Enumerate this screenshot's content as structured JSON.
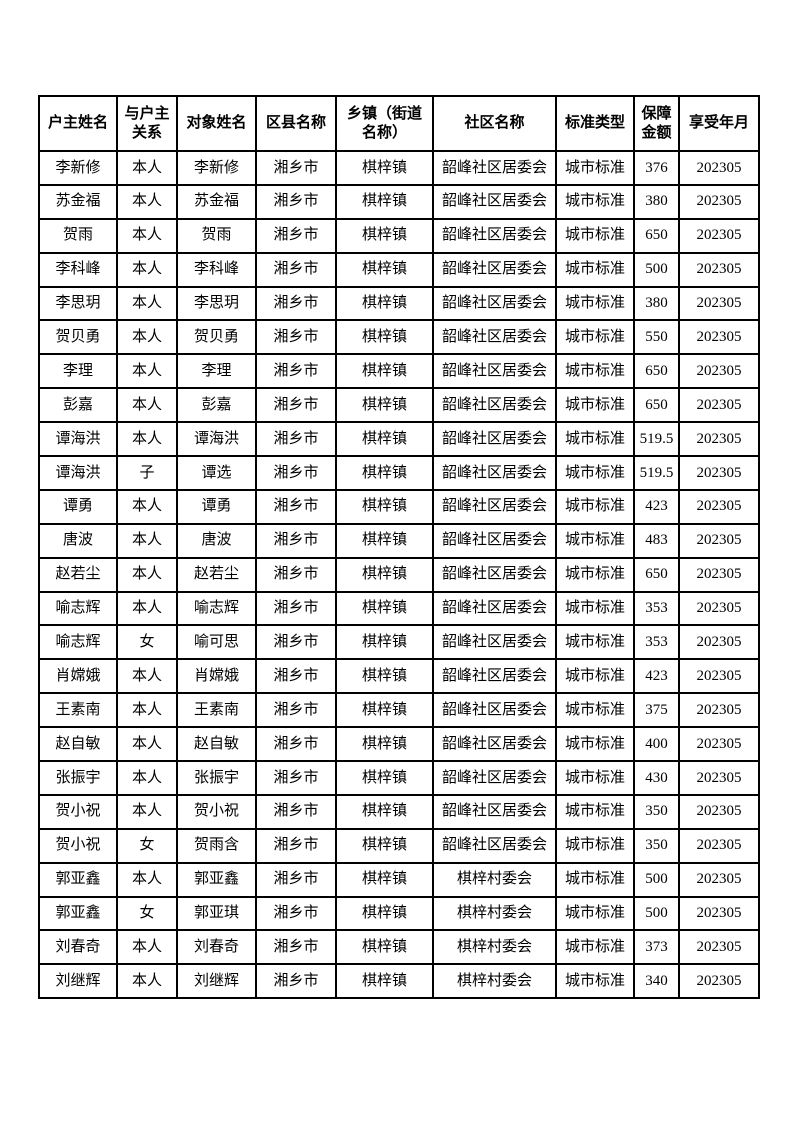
{
  "table": {
    "columns": [
      "户主姓名",
      "与户主\n关系",
      "对象姓名",
      "区县名称",
      "乡镇（街道\n名称）",
      "社区名称",
      "标准类型",
      "保障\n金额",
      "享受年月"
    ],
    "rows": [
      [
        "李新修",
        "本人",
        "李新修",
        "湘乡市",
        "棋梓镇",
        "韶峰社区居委会",
        "城市标准",
        "376",
        "202305"
      ],
      [
        "苏金福",
        "本人",
        "苏金福",
        "湘乡市",
        "棋梓镇",
        "韶峰社区居委会",
        "城市标准",
        "380",
        "202305"
      ],
      [
        "贺雨",
        "本人",
        "贺雨",
        "湘乡市",
        "棋梓镇",
        "韶峰社区居委会",
        "城市标准",
        "650",
        "202305"
      ],
      [
        "李科峰",
        "本人",
        "李科峰",
        "湘乡市",
        "棋梓镇",
        "韶峰社区居委会",
        "城市标准",
        "500",
        "202305"
      ],
      [
        "李思玥",
        "本人",
        "李思玥",
        "湘乡市",
        "棋梓镇",
        "韶峰社区居委会",
        "城市标准",
        "380",
        "202305"
      ],
      [
        "贺贝勇",
        "本人",
        "贺贝勇",
        "湘乡市",
        "棋梓镇",
        "韶峰社区居委会",
        "城市标准",
        "550",
        "202305"
      ],
      [
        "李理",
        "本人",
        "李理",
        "湘乡市",
        "棋梓镇",
        "韶峰社区居委会",
        "城市标准",
        "650",
        "202305"
      ],
      [
        "彭嘉",
        "本人",
        "彭嘉",
        "湘乡市",
        "棋梓镇",
        "韶峰社区居委会",
        "城市标准",
        "650",
        "202305"
      ],
      [
        "谭海洪",
        "本人",
        "谭海洪",
        "湘乡市",
        "棋梓镇",
        "韶峰社区居委会",
        "城市标准",
        "519.5",
        "202305"
      ],
      [
        "谭海洪",
        "子",
        "谭选",
        "湘乡市",
        "棋梓镇",
        "韶峰社区居委会",
        "城市标准",
        "519.5",
        "202305"
      ],
      [
        "谭勇",
        "本人",
        "谭勇",
        "湘乡市",
        "棋梓镇",
        "韶峰社区居委会",
        "城市标准",
        "423",
        "202305"
      ],
      [
        "唐波",
        "本人",
        "唐波",
        "湘乡市",
        "棋梓镇",
        "韶峰社区居委会",
        "城市标准",
        "483",
        "202305"
      ],
      [
        "赵若尘",
        "本人",
        "赵若尘",
        "湘乡市",
        "棋梓镇",
        "韶峰社区居委会",
        "城市标准",
        "650",
        "202305"
      ],
      [
        "喻志辉",
        "本人",
        "喻志辉",
        "湘乡市",
        "棋梓镇",
        "韶峰社区居委会",
        "城市标准",
        "353",
        "202305"
      ],
      [
        "喻志辉",
        "女",
        "喻可思",
        "湘乡市",
        "棋梓镇",
        "韶峰社区居委会",
        "城市标准",
        "353",
        "202305"
      ],
      [
        "肖嫦娥",
        "本人",
        "肖嫦娥",
        "湘乡市",
        "棋梓镇",
        "韶峰社区居委会",
        "城市标准",
        "423",
        "202305"
      ],
      [
        "王素南",
        "本人",
        "王素南",
        "湘乡市",
        "棋梓镇",
        "韶峰社区居委会",
        "城市标准",
        "375",
        "202305"
      ],
      [
        "赵自敏",
        "本人",
        "赵自敏",
        "湘乡市",
        "棋梓镇",
        "韶峰社区居委会",
        "城市标准",
        "400",
        "202305"
      ],
      [
        "张振宇",
        "本人",
        "张振宇",
        "湘乡市",
        "棋梓镇",
        "韶峰社区居委会",
        "城市标准",
        "430",
        "202305"
      ],
      [
        "贺小祝",
        "本人",
        "贺小祝",
        "湘乡市",
        "棋梓镇",
        "韶峰社区居委会",
        "城市标准",
        "350",
        "202305"
      ],
      [
        "贺小祝",
        "女",
        "贺雨含",
        "湘乡市",
        "棋梓镇",
        "韶峰社区居委会",
        "城市标准",
        "350",
        "202305"
      ],
      [
        "郭亚鑫",
        "本人",
        "郭亚鑫",
        "湘乡市",
        "棋梓镇",
        "棋梓村委会",
        "城市标准",
        "500",
        "202305"
      ],
      [
        "郭亚鑫",
        "女",
        "郭亚琪",
        "湘乡市",
        "棋梓镇",
        "棋梓村委会",
        "城市标准",
        "500",
        "202305"
      ],
      [
        "刘春奇",
        "本人",
        "刘春奇",
        "湘乡市",
        "棋梓镇",
        "棋梓村委会",
        "城市标准",
        "373",
        "202305"
      ],
      [
        "刘继辉",
        "本人",
        "刘继辉",
        "湘乡市",
        "棋梓镇",
        "棋梓村委会",
        "城市标准",
        "340",
        "202305"
      ]
    ],
    "text_color": "#000000",
    "border_color": "#000000",
    "background_color": "#ffffff"
  }
}
